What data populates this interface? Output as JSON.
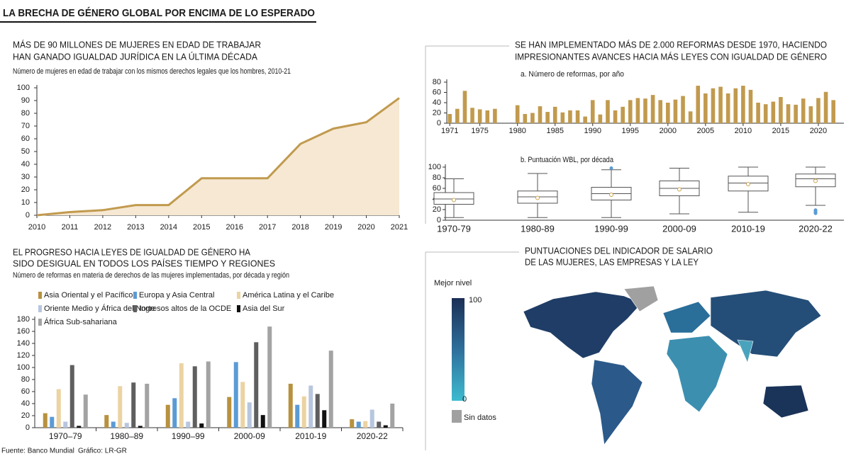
{
  "title": "LA BRECHA DE GÉNERO GLOBAL POR ENCIMA DE LO ESPERADO",
  "chart_data": [
    {
      "type": "area",
      "title": [
        "MÁS DE 90 MILLONES DE MUJERES EN EDAD DE TRABAJAR",
        "HAN GANADO IGUALDAD JURÍDICA EN LA ÚLTIMA DÉCADA"
      ],
      "subtitle": "Número de mujeres en edad de trabajar con los mismos derechos legales que los hombres, 2010-21",
      "x": [
        2010,
        2011,
        2012,
        2013,
        2014,
        2015,
        2016,
        2017,
        2018,
        2019,
        2020,
        2021
      ],
      "values": [
        0,
        2.5,
        4,
        8,
        8,
        29,
        29,
        29,
        56,
        68,
        73,
        92
      ],
      "color": "#c19a4e",
      "fill": "#f6e8d3",
      "xlim": [
        2010,
        2021
      ],
      "xticks": [
        2010,
        2011,
        2012,
        2013,
        2014,
        2015,
        2016,
        2017,
        2018,
        2019,
        2020,
        2021
      ],
      "ylim": [
        0,
        100
      ],
      "yticks": [
        0,
        10,
        20,
        30,
        40,
        50,
        60,
        70,
        80,
        90,
        100
      ]
    },
    {
      "type": "bar",
      "title": [
        "SE HAN IMPLEMENTADO MÁS DE 2.000 REFORMAS DESDE 1970, HACIENDO",
        "IMPRESIONANTES AVANCES HACIA MÁS LEYES CON IGUALDAD DE GÉNERO"
      ],
      "subtitle": "a. Número de reformas, por año",
      "x": [
        1971,
        1972,
        1973,
        1974,
        1975,
        1976,
        1977,
        1980,
        1981,
        1982,
        1983,
        1984,
        1985,
        1986,
        1987,
        1988,
        1989,
        1990,
        1991,
        1992,
        1993,
        1994,
        1995,
        1996,
        1997,
        1998,
        1999,
        2000,
        2001,
        2002,
        2003,
        2004,
        2005,
        2006,
        2007,
        2008,
        2009,
        2010,
        2011,
        2012,
        2013,
        2014,
        2015,
        2016,
        2017,
        2018,
        2019,
        2020,
        2021,
        2022
      ],
      "values": [
        18,
        28,
        63,
        30,
        27,
        25,
        28,
        35,
        18,
        20,
        33,
        22,
        32,
        21,
        25,
        25,
        13,
        45,
        17,
        45,
        25,
        32,
        45,
        49,
        48,
        55,
        45,
        40,
        46,
        53,
        23,
        73,
        58,
        68,
        71,
        58,
        68,
        73,
        65,
        40,
        37,
        42,
        51,
        37,
        36,
        48,
        33,
        49,
        61,
        45
      ],
      "color": "#c19a4e",
      "xlim": [
        1970.6,
        2023.4
      ],
      "xticks": [
        1971,
        1975,
        1980,
        1985,
        1990,
        1995,
        2000,
        2005,
        2010,
        2015,
        2020
      ],
      "ylim": [
        0,
        80
      ],
      "yticks": [
        0,
        20,
        40,
        60,
        80
      ]
    },
    {
      "type": "box",
      "subtitle": "b. Puntuación WBL, por década",
      "categories": [
        "1970-79",
        "1980-89",
        "1990-99",
        "2000-09",
        "2010-19",
        "2020-22"
      ],
      "boxes": [
        {
          "min": 5,
          "q1": 30,
          "median": 40,
          "q3": 52,
          "max": 78,
          "mean": 38
        },
        {
          "min": 5,
          "q1": 32,
          "median": 44,
          "q3": 55,
          "max": 88,
          "mean": 42
        },
        {
          "min": 5,
          "q1": 38,
          "median": 50,
          "q3": 62,
          "max": 95,
          "mean": 48,
          "outliers": [
            98
          ]
        },
        {
          "min": 12,
          "q1": 46,
          "median": 60,
          "q3": 74,
          "max": 98,
          "mean": 58
        },
        {
          "min": 15,
          "q1": 55,
          "median": 70,
          "q3": 83,
          "max": 100,
          "mean": 68
        },
        {
          "min": 28,
          "q1": 63,
          "median": 78,
          "q3": 87,
          "max": 100,
          "mean": 74,
          "outliers": [
            13,
            15,
            17,
            19
          ]
        }
      ],
      "mean_color": "#c9a24b",
      "outlier_color": "#5b9bd5",
      "ylim": [
        0,
        100
      ],
      "yticks": [
        0,
        20,
        40,
        60,
        80,
        100
      ]
    },
    {
      "type": "groupedbar",
      "title": [
        "EL PROGRESO HACIA LEYES DE IGUALDAD DE GÉNERO HA",
        "SIDO DESIGUAL EN TODOS LOS PAÍSES TIEMPO Y REGIONES"
      ],
      "subtitle": "Número de reformas en materia de derechos de las mujeres implementadas, por década y región",
      "categories": [
        "1970–79",
        "1980–89",
        "1990–99",
        "2000-09",
        "2010-19",
        "2020-22"
      ],
      "series": [
        {
          "name": "Asia Oriental y el Pacífico",
          "color": "#b8913f",
          "values": [
            24,
            21,
            38,
            51,
            73,
            14
          ]
        },
        {
          "name": "Europa y Asia Central",
          "color": "#5b9bd5",
          "values": [
            18,
            10,
            49,
            109,
            38,
            10
          ]
        },
        {
          "name": "América Latina y el Caribe",
          "color": "#ebd3a2",
          "values": [
            64,
            69,
            107,
            76,
            52,
            11
          ]
        },
        {
          "name": "Oriente Medio y África del Norte",
          "color": "#b7c6de",
          "values": [
            10,
            8,
            10,
            42,
            70,
            30
          ]
        },
        {
          "name": "Ingresos altos de la OCDE",
          "color": "#5f5f5f",
          "values": [
            104,
            75,
            102,
            142,
            56,
            10
          ]
        },
        {
          "name": "Asia del Sur",
          "color": "#111111",
          "values": [
            3,
            3,
            7,
            21,
            29,
            4
          ]
        },
        {
          "name": "África Sub-sahariana",
          "color": "#a3a3a3",
          "values": [
            55,
            73,
            110,
            168,
            128,
            40
          ]
        }
      ],
      "ylim": [
        0,
        180
      ],
      "yticks": [
        0,
        20,
        40,
        60,
        80,
        100,
        120,
        140,
        160,
        180
      ]
    }
  ],
  "map": {
    "title": [
      "PUNTUACIONES DEL INDICADOR DE SALARIO",
      "DE LAS MUJERES, LAS EMPRESAS Y LA LEY"
    ],
    "legend_title": "Mejor nivel",
    "legend_max": "100",
    "legend_min": "0",
    "no_data": "Sin datos"
  },
  "footer": {
    "source": "Fuente: Banco Mundial",
    "credit": "Gráfico: LR-GR"
  }
}
